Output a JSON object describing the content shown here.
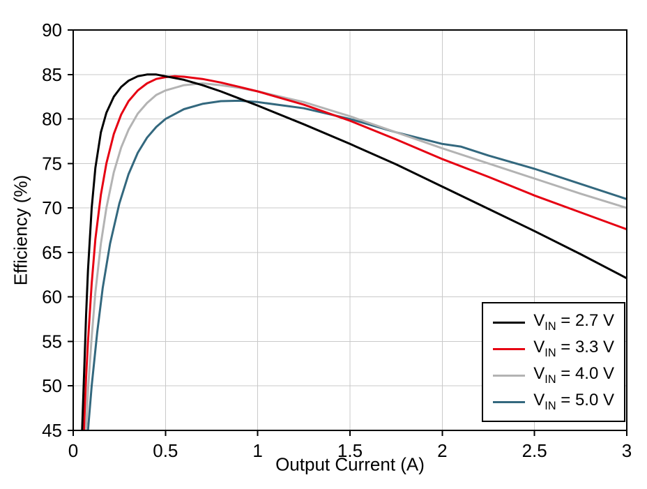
{
  "chart_data": {
    "type": "line",
    "title": "",
    "xlabel": "Output Current (A)",
    "ylabel": "Efficiency (%)",
    "xlim": [
      0,
      3
    ],
    "ylim": [
      45,
      90
    ],
    "xticks": [
      0,
      0.5,
      1,
      1.5,
      2,
      2.5,
      3
    ],
    "xtick_labels": [
      "0",
      "0.5",
      "1",
      "1.5",
      "2",
      "2.5",
      "3"
    ],
    "yticks": [
      45,
      50,
      55,
      60,
      65,
      70,
      75,
      80,
      85,
      90
    ],
    "ytick_labels": [
      "45",
      "50",
      "55",
      "60",
      "65",
      "70",
      "75",
      "80",
      "85",
      "90"
    ],
    "grid": true,
    "grid_color": "#c9c9c9",
    "frame_color": "#000000",
    "legend_position": "bottom-right",
    "series": [
      {
        "name": "VIN = 2.7 V",
        "color": "#000000",
        "legend": {
          "pre": "V",
          "sub": "IN",
          "post": " = 2.7 V"
        },
        "points": [
          [
            0.04,
            40
          ],
          [
            0.05,
            46
          ],
          [
            0.06,
            52
          ],
          [
            0.07,
            58
          ],
          [
            0.08,
            63
          ],
          [
            0.1,
            70
          ],
          [
            0.12,
            74.5
          ],
          [
            0.15,
            78.5
          ],
          [
            0.18,
            80.7
          ],
          [
            0.22,
            82.5
          ],
          [
            0.26,
            83.6
          ],
          [
            0.3,
            84.3
          ],
          [
            0.35,
            84.8
          ],
          [
            0.4,
            85.0
          ],
          [
            0.45,
            85.0
          ],
          [
            0.5,
            84.8
          ],
          [
            0.6,
            84.4
          ],
          [
            0.7,
            83.8
          ],
          [
            0.8,
            83.1
          ],
          [
            0.9,
            82.3
          ],
          [
            1.0,
            81.5
          ],
          [
            1.25,
            79.4
          ],
          [
            1.5,
            77.2
          ],
          [
            1.75,
            74.9
          ],
          [
            2.0,
            72.4
          ],
          [
            2.25,
            69.9
          ],
          [
            2.5,
            67.4
          ],
          [
            2.75,
            64.8
          ],
          [
            3.0,
            62.1
          ]
        ]
      },
      {
        "name": "VIN = 3.3 V",
        "color": "#e60012",
        "legend": {
          "pre": "V",
          "sub": "IN",
          "post": " = 3.3 V"
        },
        "points": [
          [
            0.05,
            40
          ],
          [
            0.06,
            46
          ],
          [
            0.07,
            51
          ],
          [
            0.08,
            55
          ],
          [
            0.1,
            61.5
          ],
          [
            0.12,
            66.5
          ],
          [
            0.15,
            71.5
          ],
          [
            0.18,
            75.0
          ],
          [
            0.22,
            78.3
          ],
          [
            0.26,
            80.5
          ],
          [
            0.3,
            82.0
          ],
          [
            0.35,
            83.2
          ],
          [
            0.4,
            84.0
          ],
          [
            0.45,
            84.5
          ],
          [
            0.5,
            84.7
          ],
          [
            0.55,
            84.8
          ],
          [
            0.6,
            84.75
          ],
          [
            0.7,
            84.5
          ],
          [
            0.8,
            84.1
          ],
          [
            0.9,
            83.6
          ],
          [
            1.0,
            83.1
          ],
          [
            1.25,
            81.6
          ],
          [
            1.5,
            79.8
          ],
          [
            1.75,
            77.7
          ],
          [
            2.0,
            75.5
          ],
          [
            2.25,
            73.5
          ],
          [
            2.5,
            71.4
          ],
          [
            2.75,
            69.5
          ],
          [
            3.0,
            67.6
          ]
        ]
      },
      {
        "name": "VIN = 4.0 V",
        "color": "#b3b3b3",
        "legend": {
          "pre": "V",
          "sub": "IN",
          "post": " = 4.0 V"
        },
        "points": [
          [
            0.06,
            40
          ],
          [
            0.07,
            45
          ],
          [
            0.08,
            49.5
          ],
          [
            0.1,
            55.5
          ],
          [
            0.12,
            60.5
          ],
          [
            0.15,
            66.0
          ],
          [
            0.18,
            70.0
          ],
          [
            0.22,
            74.0
          ],
          [
            0.26,
            76.8
          ],
          [
            0.3,
            78.8
          ],
          [
            0.35,
            80.6
          ],
          [
            0.4,
            81.8
          ],
          [
            0.45,
            82.7
          ],
          [
            0.5,
            83.2
          ],
          [
            0.6,
            83.8
          ],
          [
            0.7,
            84.0
          ],
          [
            0.8,
            83.8
          ],
          [
            0.9,
            83.5
          ],
          [
            1.0,
            83.1
          ],
          [
            1.25,
            81.9
          ],
          [
            1.5,
            80.3
          ],
          [
            1.75,
            78.5
          ],
          [
            2.0,
            76.7
          ],
          [
            2.25,
            75.0
          ],
          [
            2.5,
            73.3
          ],
          [
            2.75,
            71.6
          ],
          [
            3.0,
            70.0
          ]
        ]
      },
      {
        "name": "VIN = 5.0 V",
        "color": "#33687e",
        "legend": {
          "pre": "V",
          "sub": "IN",
          "post": " = 5.0 V"
        },
        "points": [
          [
            0.06,
            40
          ],
          [
            0.08,
            45
          ],
          [
            0.1,
            50
          ],
          [
            0.13,
            56
          ],
          [
            0.16,
            61
          ],
          [
            0.2,
            66
          ],
          [
            0.25,
            70.5
          ],
          [
            0.3,
            73.8
          ],
          [
            0.35,
            76.2
          ],
          [
            0.4,
            77.9
          ],
          [
            0.45,
            79.1
          ],
          [
            0.5,
            80.0
          ],
          [
            0.6,
            81.1
          ],
          [
            0.7,
            81.7
          ],
          [
            0.8,
            82.0
          ],
          [
            0.9,
            82.05
          ],
          [
            1.0,
            81.9
          ],
          [
            1.25,
            81.2
          ],
          [
            1.5,
            80.0
          ],
          [
            1.75,
            78.5
          ],
          [
            2.0,
            77.2
          ],
          [
            2.1,
            76.9
          ],
          [
            2.25,
            75.9
          ],
          [
            2.5,
            74.4
          ],
          [
            2.75,
            72.7
          ],
          [
            3.0,
            71.0
          ]
        ]
      }
    ]
  }
}
